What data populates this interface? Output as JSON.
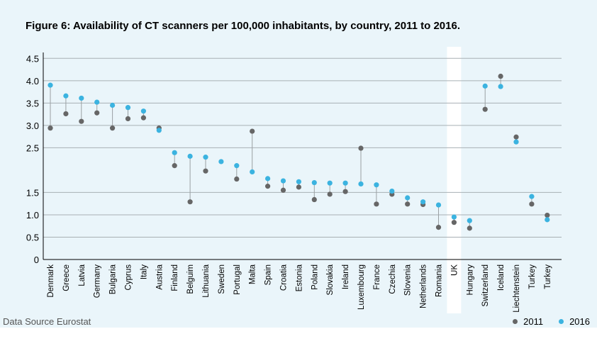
{
  "chart_data": {
    "type": "scatter",
    "title": "Figure 6: Availability of CT scanners per 100,000 inhabitants, by country, 2011 to 2016.",
    "xlabel": "",
    "ylabel": "",
    "ylim": [
      0,
      4.6
    ],
    "yticks": [
      "0",
      "0.5",
      "1.0",
      "1.5",
      "2.5",
      "3.0",
      "3.5",
      "4.0",
      "4.5"
    ],
    "ytick_values": [
      0,
      0.5,
      1.0,
      1.5,
      2.5,
      3.0,
      3.5,
      4.0,
      4.5
    ],
    "grid": true,
    "highlight_category": "UK",
    "categories": [
      "Denmark",
      "Greece",
      "Latvia",
      "Germany",
      "Bulgaria",
      "Cyprus",
      "Italy",
      "Austria",
      "Finland",
      "Belguim",
      "Lithuania",
      "Sweden",
      "Portugal",
      "Malta",
      "Spain",
      "Croatia",
      "Estonia",
      "Poland",
      "Slovakia",
      "Ireland",
      "Luxembourg",
      "France",
      "Czechia",
      "Slovenia",
      "Netherlands",
      "Romania",
      "UK",
      "Hungary",
      "Switzerland",
      "Iceland",
      "Liechtenstein",
      "Turkey",
      "Turkey"
    ],
    "series": [
      {
        "name": "2011",
        "color": "#666666",
        "values": [
          2.94,
          3.26,
          3.09,
          3.28,
          2.94,
          3.15,
          3.17,
          2.94,
          2.1,
          1.29,
          1.98,
          null,
          1.8,
          2.87,
          1.64,
          1.55,
          1.62,
          1.34,
          1.46,
          1.52,
          2.49,
          1.24,
          1.46,
          1.24,
          1.23,
          0.72,
          0.83,
          0.7,
          3.36,
          4.1,
          2.74,
          1.24,
          0.99
        ]
      },
      {
        "name": "2016",
        "color": "#3bb3e0",
        "values": [
          3.9,
          3.66,
          3.61,
          3.52,
          3.45,
          3.4,
          3.32,
          2.89,
          2.39,
          2.31,
          2.29,
          2.19,
          2.1,
          1.96,
          1.81,
          1.76,
          1.74,
          1.72,
          1.71,
          1.71,
          1.69,
          1.67,
          1.53,
          1.38,
          1.29,
          1.22,
          0.95,
          0.87,
          3.88,
          3.87,
          2.63,
          1.41,
          0.89
        ]
      }
    ],
    "legend": {
      "position": "bottom-right",
      "entries": [
        "2011",
        "2016"
      ]
    }
  },
  "source": "Data Source Eurostat"
}
